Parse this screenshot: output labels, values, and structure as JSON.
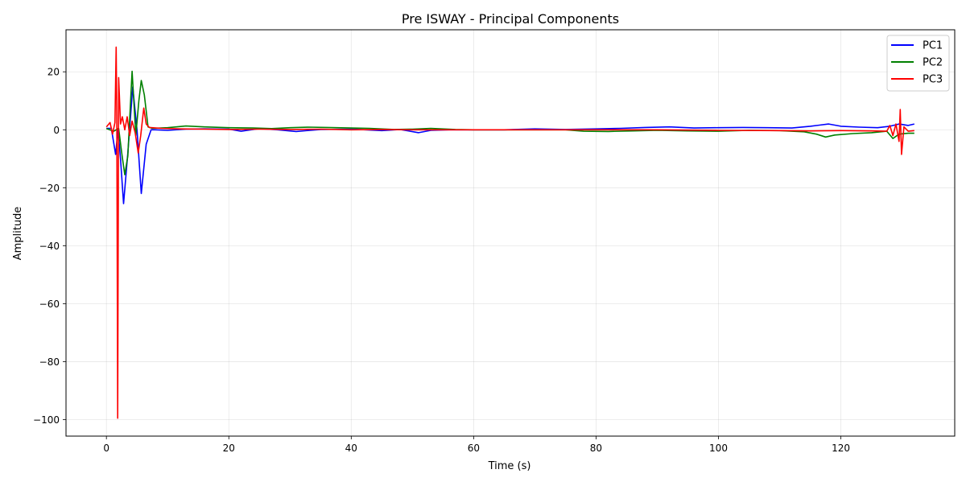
{
  "chart_data": {
    "type": "line",
    "title": "Pre ISWAY - Principal Components",
    "xlabel": "Time (s)",
    "ylabel": "Amplitude",
    "xlim": [
      -6.6,
      138.6
    ],
    "ylim": [
      -105.7,
      34.5
    ],
    "xticks": [
      0,
      20,
      40,
      60,
      80,
      100,
      120
    ],
    "yticks": [
      20,
      0,
      -20,
      -40,
      -60,
      -80,
      -100
    ],
    "xtick_labels": [
      "0",
      "20",
      "40",
      "60",
      "80",
      "100",
      "120"
    ],
    "ytick_labels": [
      "20",
      "0",
      "−20",
      "−40",
      "−60",
      "−80",
      "−100"
    ],
    "grid": true,
    "legend": {
      "position": "top-right",
      "entries": [
        "PC1",
        "PC2",
        "PC3"
      ]
    },
    "series": [
      {
        "name": "PC1",
        "color": "#0000ff",
        "points": [
          [
            0,
            0.5
          ],
          [
            0.8,
            0.5
          ],
          [
            1.5,
            -8.5
          ],
          [
            1.9,
            0
          ],
          [
            2.3,
            -10
          ],
          [
            2.8,
            -25.5
          ],
          [
            3.5,
            -8
          ],
          [
            4.3,
            14.8
          ],
          [
            5,
            0
          ],
          [
            5.7,
            -22
          ],
          [
            6.5,
            -5
          ],
          [
            7.3,
            0
          ],
          [
            8,
            0
          ],
          [
            10,
            -0.2
          ],
          [
            13,
            0.2
          ],
          [
            16,
            0.3
          ],
          [
            20,
            0.2
          ],
          [
            22,
            -0.5
          ],
          [
            25,
            0.4
          ],
          [
            28,
            0
          ],
          [
            31,
            -0.6
          ],
          [
            35,
            0.1
          ],
          [
            40,
            0.2
          ],
          [
            45,
            -0.3
          ],
          [
            48,
            0.1
          ],
          [
            51,
            -1
          ],
          [
            53,
            -0.2
          ],
          [
            56,
            0
          ],
          [
            60,
            0
          ],
          [
            65,
            0
          ],
          [
            70,
            0.3
          ],
          [
            75,
            0.1
          ],
          [
            80,
            0.3
          ],
          [
            84,
            0.5
          ],
          [
            88,
            0.8
          ],
          [
            92,
            1
          ],
          [
            96,
            0.6
          ],
          [
            100,
            0.7
          ],
          [
            104,
            0.8
          ],
          [
            108,
            0.7
          ],
          [
            112,
            0.6
          ],
          [
            115,
            1.2
          ],
          [
            118,
            2
          ],
          [
            120,
            1.2
          ],
          [
            123,
            0.9
          ],
          [
            126,
            0.7
          ],
          [
            128,
            1.2
          ],
          [
            129.5,
            2
          ],
          [
            131,
            1.5
          ],
          [
            132,
            2
          ]
        ]
      },
      {
        "name": "PC2",
        "color": "#008000",
        "points": [
          [
            0,
            0.4
          ],
          [
            1.2,
            -0.5
          ],
          [
            2,
            0.5
          ],
          [
            2.5,
            -8
          ],
          [
            3,
            -15.5
          ],
          [
            3.5,
            -9
          ],
          [
            4.2,
            20.2
          ],
          [
            4.8,
            -2
          ],
          [
            5.3,
            10
          ],
          [
            5.7,
            17
          ],
          [
            6.2,
            12
          ],
          [
            6.8,
            1
          ],
          [
            7.5,
            0.5
          ],
          [
            10,
            0.7
          ],
          [
            13,
            1.3
          ],
          [
            16,
            1
          ],
          [
            20,
            0.7
          ],
          [
            24,
            0.6
          ],
          [
            27,
            0.4
          ],
          [
            30,
            0.7
          ],
          [
            33,
            0.9
          ],
          [
            36,
            0.8
          ],
          [
            40,
            0.6
          ],
          [
            43,
            0.5
          ],
          [
            47,
            0.1
          ],
          [
            50,
            0.2
          ],
          [
            53,
            0.5
          ],
          [
            57,
            0.1
          ],
          [
            60,
            0
          ],
          [
            65,
            0
          ],
          [
            70,
            0
          ],
          [
            75,
            0
          ],
          [
            78,
            -0.5
          ],
          [
            82,
            -0.6
          ],
          [
            86,
            -0.4
          ],
          [
            90,
            -0.2
          ],
          [
            95,
            -0.4
          ],
          [
            100,
            -0.5
          ],
          [
            105,
            -0.2
          ],
          [
            110,
            -0.3
          ],
          [
            114,
            -0.7
          ],
          [
            116,
            -1.5
          ],
          [
            117.5,
            -2.5
          ],
          [
            119,
            -1.8
          ],
          [
            122,
            -1.3
          ],
          [
            125,
            -1
          ],
          [
            127.5,
            -0.5
          ],
          [
            128.5,
            -3
          ],
          [
            129.5,
            -1.5
          ],
          [
            131,
            -1.2
          ],
          [
            132,
            -1.2
          ]
        ]
      },
      {
        "name": "PC3",
        "color": "#ff0000",
        "points": [
          [
            0,
            1
          ],
          [
            0.6,
            2.5
          ],
          [
            1,
            -1.5
          ],
          [
            1.4,
            2.5
          ],
          [
            1.6,
            28.5
          ],
          [
            1.7,
            5
          ],
          [
            1.85,
            -99.5
          ],
          [
            2,
            18
          ],
          [
            2.3,
            2
          ],
          [
            2.6,
            4.5
          ],
          [
            3,
            0
          ],
          [
            3.4,
            4.5
          ],
          [
            3.8,
            -2
          ],
          [
            4.2,
            3
          ],
          [
            4.7,
            -1
          ],
          [
            5.2,
            -8
          ],
          [
            5.6,
            -2
          ],
          [
            6.1,
            7.5
          ],
          [
            6.5,
            2
          ],
          [
            7,
            0.8
          ],
          [
            9,
            0.5
          ],
          [
            12,
            0.3
          ],
          [
            16,
            0.2
          ],
          [
            20,
            0.1
          ],
          [
            25,
            0.2
          ],
          [
            30,
            0.1
          ],
          [
            35,
            0.2
          ],
          [
            40,
            0
          ],
          [
            45,
            0.1
          ],
          [
            50,
            0
          ],
          [
            55,
            0
          ],
          [
            60,
            0
          ],
          [
            70,
            0
          ],
          [
            80,
            0
          ],
          [
            90,
            0
          ],
          [
            100,
            -0.2
          ],
          [
            110,
            -0.3
          ],
          [
            115,
            -0.4
          ],
          [
            120,
            -0.3
          ],
          [
            125,
            -0.4
          ],
          [
            127.5,
            -0.5
          ],
          [
            128,
            1.5
          ],
          [
            128.5,
            -2
          ],
          [
            129,
            2
          ],
          [
            129.5,
            -4
          ],
          [
            129.7,
            7
          ],
          [
            129.9,
            -8.5
          ],
          [
            130.3,
            1
          ],
          [
            131,
            -0.5
          ],
          [
            132,
            -0.3
          ]
        ]
      }
    ]
  }
}
